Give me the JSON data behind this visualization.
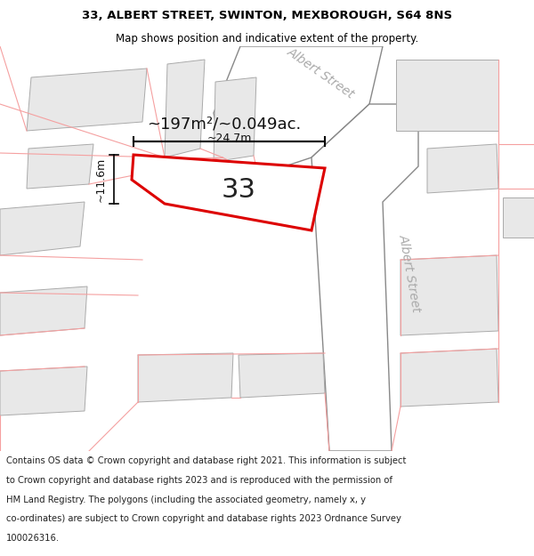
{
  "title_line1": "33, ALBERT STREET, SWINTON, MEXBOROUGH, S64 8NS",
  "title_line2": "Map shows position and indicative extent of the property.",
  "footer_lines": [
    "Contains OS data © Crown copyright and database right 2021. This information is subject",
    "to Crown copyright and database rights 2023 and is reproduced with the permission of",
    "HM Land Registry. The polygons (including the associated geometry, namely x, y",
    "co-ordinates) are subject to Crown copyright and database rights 2023 Ordnance Survey",
    "100026316."
  ],
  "area_label": "~197m²/~0.049ac.",
  "plot_number": "33",
  "dim_width": "~24.7m",
  "dim_height": "~11.6m",
  "bg_color": "#ffffff",
  "map_bg": "#ffffff",
  "building_fill": "#e8e8e8",
  "building_edge": "#aaaaaa",
  "parcel_edge": "#f5a0a0",
  "road_fill": "#ffffff",
  "road_edge": "#888888",
  "highlight_color": "#dd0000",
  "street_label_color": "#aaaaaa",
  "street_label1": "Albert Street",
  "street_label2": "Albert Street",
  "title_fontsize": 9.5,
  "subtitle_fontsize": 8.5,
  "footer_fontsize": 7.2,
  "area_fontsize": 13,
  "plot_num_fontsize": 22,
  "dim_fontsize": 9
}
